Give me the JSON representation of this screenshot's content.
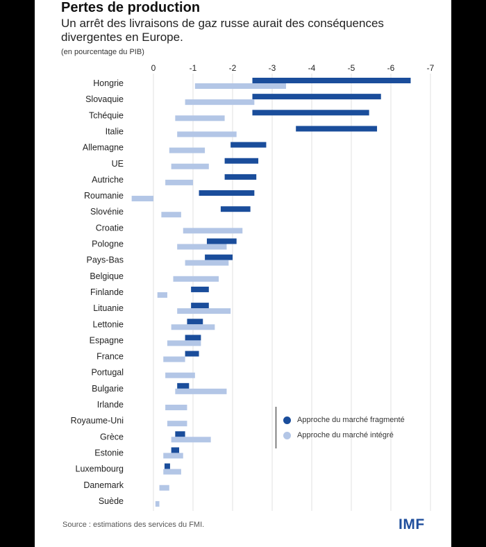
{
  "header": {
    "title": "Pertes de production",
    "subtitle": "Un arrêt des livraisons de gaz russe aurait des conséquences divergentes en Europe.",
    "unit": "(en pourcentage du PIB)"
  },
  "footer": {
    "source": "Source : estimations des services du FMI.",
    "logo": "IMF"
  },
  "legend": {
    "fragmented": "Approche du marché fragmenté",
    "integrated": "Approche du marché intégré"
  },
  "colors": {
    "fragmented": "#1a4d9b",
    "integrated": "#b3c6e6",
    "grid": "#e2e2e2"
  },
  "chart_data": {
    "type": "bar",
    "orientation": "horizontal",
    "bar_style": "range",
    "x_ticks": [
      "0",
      "-1",
      "-2",
      "-3",
      "-4",
      "-5",
      "-6",
      "-7"
    ],
    "xlim": [
      0.6,
      -7
    ],
    "categories": [
      "Hongrie",
      "Slovaquie",
      "Tchéquie",
      "Italie",
      "Allemagne",
      "UE",
      "Autriche",
      "Roumanie",
      "Slovénie",
      "Croatie",
      "Pologne",
      "Pays-Bas",
      "Belgique",
      "Finlande",
      "Lituanie",
      "Lettonie",
      "Espagne",
      "France",
      "Portugal",
      "Bulgarie",
      "Irlande",
      "Royaume-Uni",
      "Grèce",
      "Estonie",
      "Luxembourg",
      "Danemark",
      "Suède"
    ],
    "series": [
      {
        "name": "Approche du marché fragmenté",
        "ranges": [
          [
            -2.5,
            -6.5
          ],
          [
            -2.5,
            -5.75
          ],
          [
            -2.5,
            -5.45
          ],
          [
            -3.6,
            -5.65
          ],
          [
            -1.95,
            -2.85
          ],
          [
            -1.8,
            -2.65
          ],
          [
            -1.8,
            -2.6
          ],
          [
            -1.15,
            -2.55
          ],
          [
            -1.7,
            -2.45
          ],
          null,
          [
            -1.35,
            -2.1
          ],
          [
            -1.3,
            -2.0
          ],
          null,
          [
            -0.95,
            -1.4
          ],
          [
            -0.95,
            -1.4
          ],
          [
            -0.85,
            -1.25
          ],
          [
            -0.8,
            -1.2
          ],
          [
            -0.8,
            -1.15
          ],
          null,
          [
            -0.6,
            -0.9
          ],
          null,
          null,
          [
            -0.55,
            -0.8
          ],
          [
            -0.45,
            -0.65
          ],
          [
            -0.28,
            -0.42
          ],
          null,
          null
        ]
      },
      {
        "name": "Approche du marché intégré",
        "ranges": [
          [
            -1.05,
            -3.35
          ],
          [
            -0.8,
            -2.55
          ],
          [
            -0.55,
            -1.8
          ],
          [
            -0.6,
            -2.1
          ],
          [
            -0.4,
            -1.3
          ],
          [
            -0.45,
            -1.4
          ],
          [
            -0.3,
            -1.0
          ],
          [
            0.55,
            0.0
          ],
          [
            -0.2,
            -0.7
          ],
          [
            -0.75,
            -2.25
          ],
          [
            -0.6,
            -1.85
          ],
          [
            -0.8,
            -1.9
          ],
          [
            -0.5,
            -1.65
          ],
          [
            -0.1,
            -0.35
          ],
          [
            -0.6,
            -1.95
          ],
          [
            -0.45,
            -1.55
          ],
          [
            -0.35,
            -1.2
          ],
          [
            -0.25,
            -0.8
          ],
          [
            -0.3,
            -1.05
          ],
          [
            -0.55,
            -1.85
          ],
          [
            -0.3,
            -0.85
          ],
          [
            -0.35,
            -0.85
          ],
          [
            -0.45,
            -1.45
          ],
          [
            -0.25,
            -0.75
          ],
          [
            -0.25,
            -0.7
          ],
          [
            -0.15,
            -0.4
          ],
          [
            -0.05,
            -0.15
          ]
        ]
      }
    ]
  }
}
